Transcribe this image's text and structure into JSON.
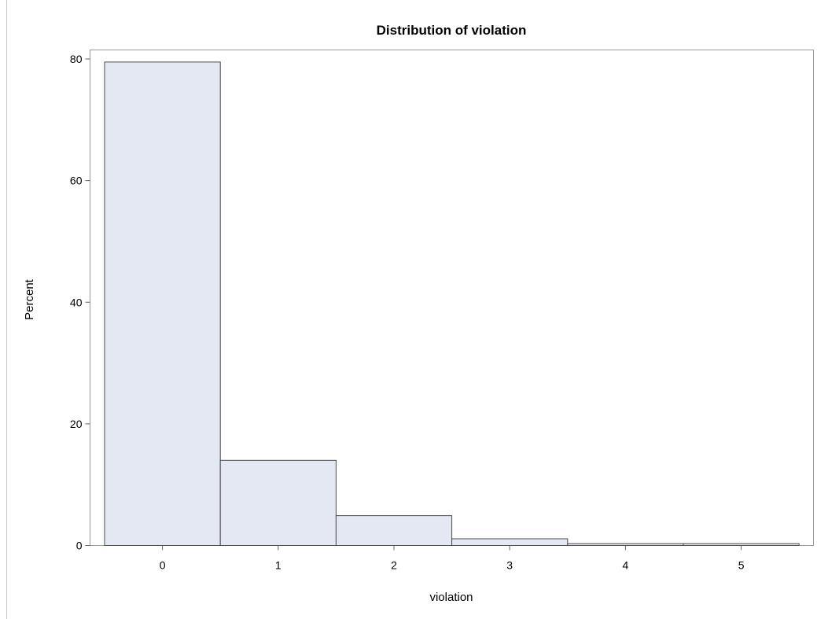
{
  "chart_data": {
    "type": "bar",
    "title": "Distribution of violation",
    "xlabel": "violation",
    "ylabel": "Percent",
    "categories": [
      "0",
      "1",
      "2",
      "3",
      "4",
      "5"
    ],
    "values": [
      79.5,
      14.0,
      4.9,
      1.1,
      0.3,
      0.3
    ],
    "ylim": [
      0,
      80
    ],
    "yticks": [
      "0",
      "20",
      "40",
      "60",
      "80"
    ],
    "grid": false,
    "colors": {
      "bar_fill": "#e3e8f2",
      "bar_stroke": "#4a4a4a",
      "frame": "#999999",
      "left_rule": "#c8c8c8"
    }
  }
}
